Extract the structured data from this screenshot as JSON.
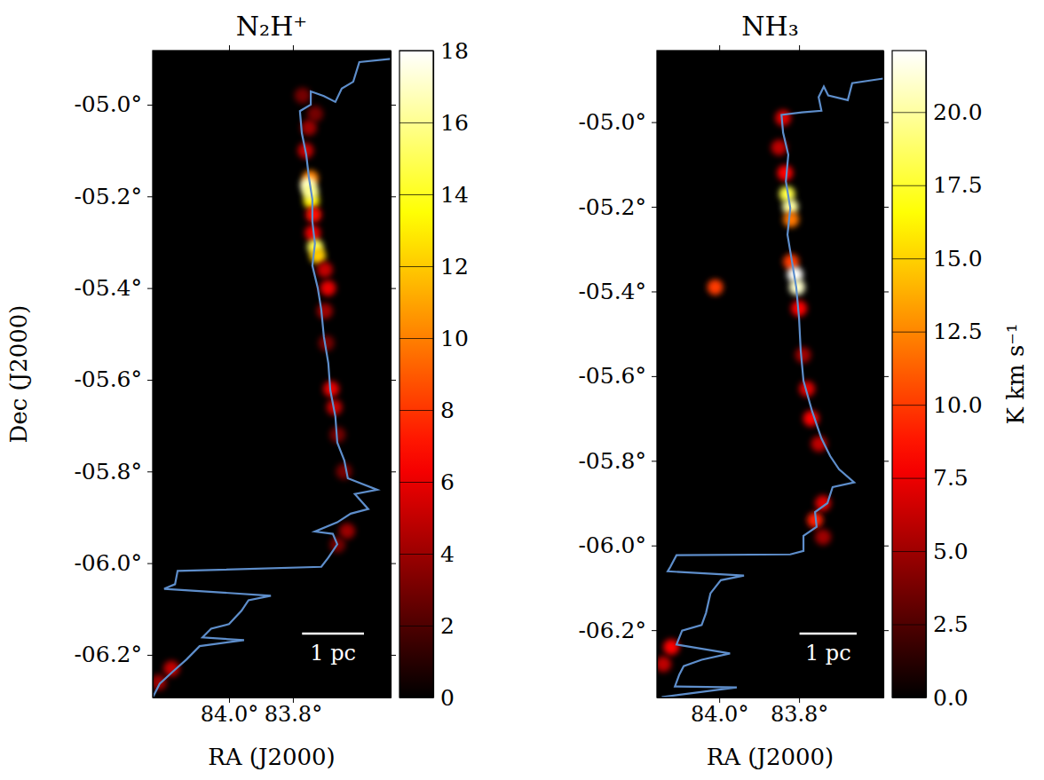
{
  "chart_data": [
    {
      "type": "image",
      "title": "N₂H⁺",
      "x_label": "RA (J2000)",
      "y_label": "Dec (J2000)",
      "xlim": [
        84.239,
        83.494
      ],
      "ylim": [
        -6.293,
        -4.882
      ],
      "xticks": [
        {
          "value": 84.0,
          "label": "84.0°"
        },
        {
          "value": 83.8,
          "label": "83.8°"
        }
      ],
      "yticks": [
        {
          "value": -5.0,
          "label": "-05.0°"
        },
        {
          "value": -5.2,
          "label": "-05.2°"
        },
        {
          "value": -5.4,
          "label": "-05.4°"
        },
        {
          "value": -5.6,
          "label": "-05.6°"
        },
        {
          "value": -5.8,
          "label": "-05.8°"
        },
        {
          "value": -6.0,
          "label": "-06.0°"
        },
        {
          "value": -6.2,
          "label": "-06.2°"
        }
      ],
      "series": [
        {
          "color": "#5e8ecb",
          "line_style": "solid",
          "x": [
            83.494,
            83.592,
            83.611,
            83.647,
            83.667,
            83.703,
            83.744,
            83.744,
            83.778,
            83.772,
            83.758,
            83.75,
            83.739,
            83.739,
            83.731,
            83.739,
            83.722,
            83.711,
            83.703,
            83.689,
            83.683,
            83.667,
            83.661,
            83.639,
            83.628,
            83.536,
            83.606,
            83.564,
            83.619,
            83.661,
            83.731,
            83.675,
            83.661,
            83.689,
            83.711,
            84.161,
            84.169,
            84.203,
            83.869,
            83.939,
            83.961,
            84.0,
            84.056,
            84.083,
            83.953,
            84.092,
            84.133,
            84.175,
            84.217,
            84.239
          ],
          "y": [
            -4.9,
            -4.907,
            -4.95,
            -4.965,
            -4.994,
            -4.981,
            -4.971,
            -5.0,
            -5.014,
            -5.062,
            -5.11,
            -5.158,
            -5.207,
            -5.255,
            -5.303,
            -5.351,
            -5.4,
            -5.448,
            -5.506,
            -5.564,
            -5.622,
            -5.68,
            -5.737,
            -5.776,
            -5.815,
            -5.84,
            -5.849,
            -5.882,
            -5.892,
            -5.911,
            -5.931,
            -5.936,
            -5.959,
            -5.988,
            -6.008,
            -6.017,
            -6.046,
            -6.056,
            -6.071,
            -6.081,
            -6.104,
            -6.133,
            -6.143,
            -6.162,
            -6.168,
            -6.181,
            -6.21,
            -6.236,
            -6.263,
            -6.293
          ]
        }
      ],
      "emission": {
        "x": [
          83.77,
          83.73,
          83.75,
          83.76,
          83.745,
          83.752,
          83.742,
          83.735,
          83.738,
          83.73,
          83.722,
          83.7,
          83.69,
          83.7,
          83.695,
          83.68,
          83.67,
          83.66,
          83.64,
          83.63,
          83.66,
          84.18,
          84.22,
          83.745
        ],
        "y": [
          -4.98,
          -5.02,
          -5.05,
          -5.1,
          -5.16,
          -5.175,
          -5.21,
          -5.24,
          -5.28,
          -5.31,
          -5.33,
          -5.36,
          -5.4,
          -5.45,
          -5.52,
          -5.62,
          -5.66,
          -5.72,
          -5.8,
          -5.93,
          -5.96,
          -6.23,
          -6.26,
          -5.19
        ],
        "values": [
          3,
          3,
          4,
          5,
          10,
          17,
          13,
          7,
          6,
          15,
          12,
          5,
          6,
          4,
          3,
          6,
          5,
          3,
          3,
          4,
          3,
          5,
          4,
          16
        ]
      },
      "colorbar": {
        "lim": [
          0,
          18
        ],
        "ticks": [
          0,
          2,
          4,
          6,
          8,
          10,
          12,
          14,
          16,
          18
        ]
      },
      "scale_bar": {
        "label": "1 pc",
        "length": 0.135
      }
    },
    {
      "type": "image",
      "title": "NH₃",
      "x_label": "RA (J2000)",
      "xlim": [
        84.156,
        83.589
      ],
      "ylim": [
        -6.359,
        -4.831
      ],
      "xticks": [
        {
          "value": 84.0,
          "label": "84.0°"
        },
        {
          "value": 83.8,
          "label": "83.8°"
        }
      ],
      "yticks": [
        {
          "value": -5.0,
          "label": "-05.0°"
        },
        {
          "value": -5.2,
          "label": "-05.2°"
        },
        {
          "value": -5.4,
          "label": "-05.4°"
        },
        {
          "value": -5.6,
          "label": "-05.6°"
        },
        {
          "value": -5.8,
          "label": "-05.8°"
        },
        {
          "value": -6.0,
          "label": "-06.0°"
        },
        {
          "value": -6.2,
          "label": "-06.2°"
        }
      ],
      "series": [
        {
          "color": "#5e8ecb",
          "line_style": "solid",
          "x": [
            83.589,
            83.667,
            83.678,
            83.727,
            83.738,
            83.751,
            83.744,
            83.793,
            83.844,
            83.84,
            83.827,
            83.833,
            83.822,
            83.829,
            83.818,
            83.807,
            83.8,
            83.796,
            83.789,
            83.767,
            83.744,
            83.722,
            83.7,
            83.662,
            83.716,
            83.729,
            83.76,
            83.756,
            83.789,
            83.789,
            83.822,
            84.107,
            84.122,
            84.129,
            83.938,
            83.996,
            84.022,
            84.033,
            84.044,
            84.093,
            84.107,
            83.973,
            84.044,
            84.089,
            84.1,
            84.111,
            83.956,
            84.144
          ],
          "y": [
            -4.897,
            -4.908,
            -4.948,
            -4.937,
            -4.916,
            -4.941,
            -4.973,
            -4.977,
            -4.983,
            -5.025,
            -5.077,
            -5.14,
            -5.203,
            -5.266,
            -5.328,
            -5.391,
            -5.464,
            -5.538,
            -5.611,
            -5.684,
            -5.747,
            -5.789,
            -5.82,
            -5.851,
            -5.862,
            -5.9,
            -5.921,
            -5.956,
            -5.977,
            -6.013,
            -6.021,
            -6.023,
            -6.05,
            -6.061,
            -6.071,
            -6.082,
            -6.113,
            -6.159,
            -6.188,
            -6.201,
            -6.234,
            -6.255,
            -6.27,
            -6.285,
            -6.305,
            -6.333,
            -6.335,
            -6.358
          ]
        }
      ],
      "emission": {
        "x": [
          83.84,
          83.85,
          83.835,
          83.83,
          83.822,
          83.82,
          83.81,
          83.805,
          83.8,
          83.79,
          83.78,
          83.77,
          83.75,
          83.74,
          83.76,
          83.74,
          84.01,
          84.12,
          84.14,
          83.82
        ],
        "y": [
          -4.99,
          -5.06,
          -5.12,
          -5.17,
          -5.2,
          -5.33,
          -5.36,
          -5.39,
          -5.44,
          -5.55,
          -5.63,
          -5.7,
          -5.76,
          -5.9,
          -5.94,
          -5.98,
          -5.39,
          -6.24,
          -6.28,
          -5.23
        ],
        "values": [
          7,
          6,
          8,
          18,
          20,
          10,
          22,
          21,
          8,
          5,
          7,
          8,
          6,
          7,
          9,
          5,
          10,
          8,
          6,
          12
        ]
      },
      "colorbar": {
        "lim": [
          0,
          22.1
        ],
        "label": "K km s⁻¹",
        "ticks": [
          {
            "value": 0,
            "label": "0.0"
          },
          {
            "value": 2.5,
            "label": "2.5"
          },
          {
            "value": 5,
            "label": "5.0"
          },
          {
            "value": 7.5,
            "label": "7.5"
          },
          {
            "value": 10,
            "label": "10.0"
          },
          {
            "value": 12.5,
            "label": "12.5"
          },
          {
            "value": 15,
            "label": "15.0"
          },
          {
            "value": 17.5,
            "label": "17.5"
          },
          {
            "value": 20,
            "label": "20.0"
          }
        ]
      },
      "scale_bar": {
        "label": "1 pc",
        "length": 0.135
      }
    }
  ]
}
